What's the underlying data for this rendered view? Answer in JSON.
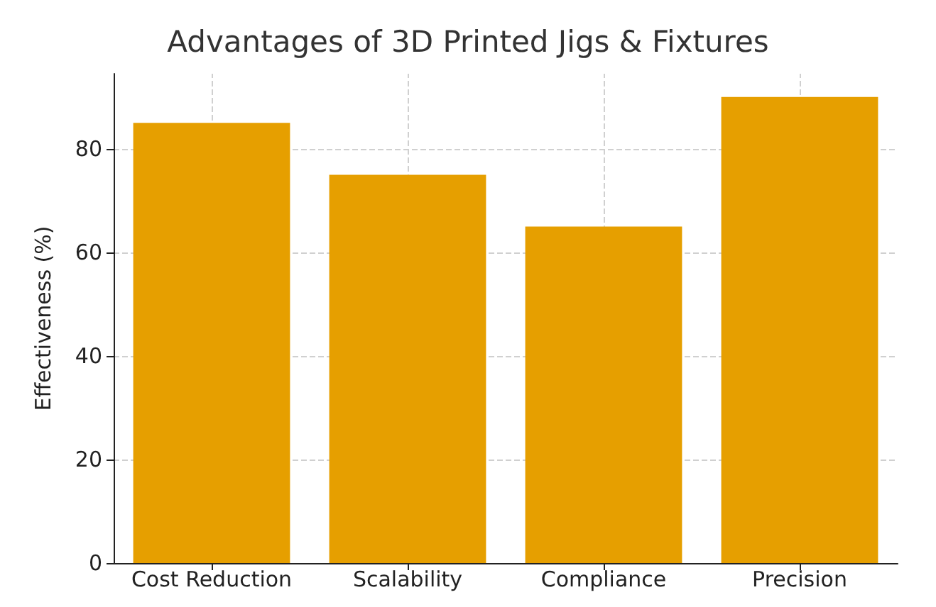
{
  "chart_data": {
    "type": "bar",
    "title": "Advantages of 3D Printed Jigs & Fixtures",
    "ylabel": "Effectiveness (%)",
    "categories": [
      "Cost Reduction",
      "Scalability",
      "Compliance",
      "Precision"
    ],
    "values": [
      85,
      75,
      65,
      90
    ],
    "color": "#e69f00",
    "ylim": [
      0,
      94.5
    ],
    "yticks": [
      0,
      20,
      40,
      60,
      80
    ],
    "grid": true
  }
}
